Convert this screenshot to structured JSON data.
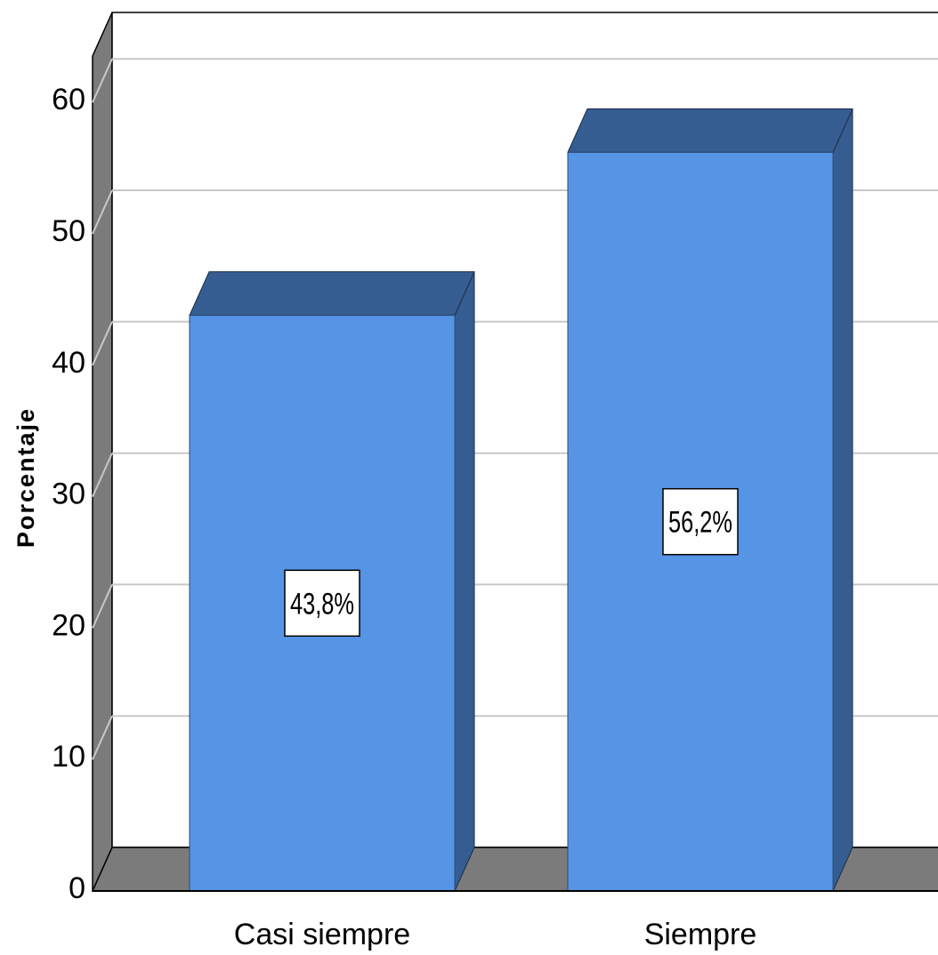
{
  "chart_data": {
    "type": "bar",
    "categories": [
      "Casi siempre",
      "Siempre"
    ],
    "values": [
      43.8,
      56.2
    ],
    "value_labels": [
      "43,8%",
      "56,2%"
    ],
    "title": "",
    "xlabel": "",
    "ylabel": "Porcentaje",
    "ylim": [
      0,
      60
    ],
    "yticks": [
      0,
      10,
      20,
      30,
      40,
      50,
      60
    ],
    "ytick_labels": [
      "0",
      "10",
      "20",
      "30",
      "40",
      "50",
      "60"
    ],
    "grid": true,
    "legend": "none",
    "style": "3d",
    "colors": {
      "bar_front": "#5694e5",
      "bar_top": "#355d92",
      "bar_side": "#355d92",
      "floor": "#7b7b7b",
      "back_wall": "#ffffff",
      "side_wall": "#7b7b7b",
      "gridline": "#c8c8c8"
    }
  }
}
